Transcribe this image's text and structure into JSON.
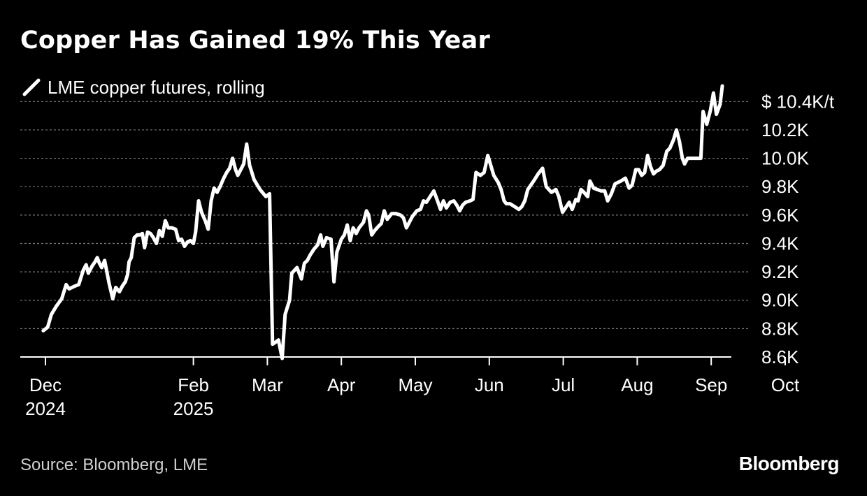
{
  "colors": {
    "background": "#000000",
    "line": "#ffffff",
    "grid": "#7a7a7a",
    "text": "#ffffff",
    "muted_text": "#cfcfcf"
  },
  "header": {
    "title": "Copper Has Gained 19% This Year"
  },
  "legend": {
    "label": "LME copper futures, rolling",
    "icon": "white-line-swatch-icon"
  },
  "footer": {
    "source": "Source: Bloomberg, LME",
    "brand": "Bloomberg"
  },
  "chart_data": {
    "type": "line",
    "title": "Copper Has Gained 19% This Year",
    "xlabel": "",
    "ylabel": "$/t",
    "ylim": [
      8600,
      10500
    ],
    "y_tick_values": [
      8600,
      8800,
      9000,
      9200,
      9400,
      9600,
      9800,
      10000,
      10200,
      10400
    ],
    "y_tick_labels": [
      "8.6K",
      "8.8K",
      "9.0K",
      "9.2K",
      "9.4K",
      "9.6K",
      "9.8K",
      "10.0K",
      "10.2K",
      "$ 10.4K/t"
    ],
    "x_ticks": [
      {
        "top": "Dec",
        "bottom": "2024",
        "t": 0
      },
      {
        "top": "Feb",
        "bottom": "2025",
        "t": 2
      },
      {
        "top": "Mar",
        "bottom": "",
        "t": 3
      },
      {
        "top": "Apr",
        "bottom": "",
        "t": 4
      },
      {
        "top": "May",
        "bottom": "",
        "t": 5
      },
      {
        "top": "Jun",
        "bottom": "",
        "t": 6
      },
      {
        "top": "Jul",
        "bottom": "",
        "t": 7
      },
      {
        "top": "Aug",
        "bottom": "",
        "t": 8
      },
      {
        "top": "Sep",
        "bottom": "",
        "t": 9
      },
      {
        "top": "Oct",
        "bottom": "",
        "t": 10
      }
    ],
    "grid": true,
    "legend_position": "top-left",
    "series": [
      {
        "name": "LME copper futures, rolling",
        "points": [
          [
            -0.03,
            8785
          ],
          [
            0.03,
            8810
          ],
          [
            0.08,
            8900
          ],
          [
            0.15,
            8960
          ],
          [
            0.22,
            9010
          ],
          [
            0.28,
            9110
          ],
          [
            0.32,
            9080
          ],
          [
            0.4,
            9100
          ],
          [
            0.45,
            9110
          ],
          [
            0.51,
            9210
          ],
          [
            0.55,
            9250
          ],
          [
            0.58,
            9190
          ],
          [
            0.63,
            9240
          ],
          [
            0.67,
            9270
          ],
          [
            0.7,
            9300
          ],
          [
            0.73,
            9260
          ],
          [
            0.76,
            9230
          ],
          [
            0.8,
            9280
          ],
          [
            0.86,
            9120
          ],
          [
            0.91,
            9010
          ],
          [
            0.95,
            9090
          ],
          [
            1.0,
            9060
          ],
          [
            1.04,
            9100
          ],
          [
            1.08,
            9130
          ],
          [
            1.11,
            9180
          ],
          [
            1.13,
            9270
          ],
          [
            1.16,
            9300
          ],
          [
            1.2,
            9440
          ],
          [
            1.24,
            9460
          ],
          [
            1.28,
            9460
          ],
          [
            1.31,
            9470
          ],
          [
            1.34,
            9370
          ],
          [
            1.38,
            9480
          ],
          [
            1.42,
            9470
          ],
          [
            1.46,
            9440
          ],
          [
            1.5,
            9400
          ],
          [
            1.54,
            9490
          ],
          [
            1.58,
            9450
          ],
          [
            1.62,
            9560
          ],
          [
            1.66,
            9510
          ],
          [
            1.71,
            9510
          ],
          [
            1.76,
            9500
          ],
          [
            1.8,
            9420
          ],
          [
            1.84,
            9430
          ],
          [
            1.88,
            9380
          ],
          [
            1.92,
            9410
          ],
          [
            1.96,
            9420
          ],
          [
            2.0,
            9400
          ],
          [
            2.03,
            9480
          ],
          [
            2.07,
            9700
          ],
          [
            2.11,
            9620
          ],
          [
            2.16,
            9560
          ],
          [
            2.2,
            9500
          ],
          [
            2.24,
            9700
          ],
          [
            2.28,
            9790
          ],
          [
            2.32,
            9760
          ],
          [
            2.36,
            9800
          ],
          [
            2.41,
            9860
          ],
          [
            2.45,
            9900
          ],
          [
            2.49,
            9930
          ],
          [
            2.53,
            10000
          ],
          [
            2.57,
            9920
          ],
          [
            2.6,
            9880
          ],
          [
            2.64,
            9920
          ],
          [
            2.68,
            9960
          ],
          [
            2.72,
            10100
          ],
          [
            2.76,
            9950
          ],
          [
            2.82,
            9850
          ],
          [
            2.9,
            9780
          ],
          [
            2.98,
            9730
          ],
          [
            3.03,
            9750
          ],
          [
            3.07,
            8690
          ],
          [
            3.1,
            8700
          ],
          [
            3.15,
            8720
          ],
          [
            3.2,
            8590
          ],
          [
            3.24,
            8900
          ],
          [
            3.3,
            9000
          ],
          [
            3.33,
            9190
          ],
          [
            3.4,
            9230
          ],
          [
            3.46,
            9150
          ],
          [
            3.5,
            9260
          ],
          [
            3.54,
            9280
          ],
          [
            3.58,
            9320
          ],
          [
            3.63,
            9360
          ],
          [
            3.68,
            9390
          ],
          [
            3.72,
            9460
          ],
          [
            3.75,
            9380
          ],
          [
            3.8,
            9440
          ],
          [
            3.86,
            9430
          ],
          [
            3.9,
            9130
          ],
          [
            3.94,
            9340
          ],
          [
            4.0,
            9430
          ],
          [
            4.04,
            9460
          ],
          [
            4.08,
            9530
          ],
          [
            4.12,
            9420
          ],
          [
            4.16,
            9510
          ],
          [
            4.2,
            9470
          ],
          [
            4.24,
            9510
          ],
          [
            4.3,
            9550
          ],
          [
            4.34,
            9630
          ],
          [
            4.37,
            9600
          ],
          [
            4.41,
            9460
          ],
          [
            4.45,
            9490
          ],
          [
            4.5,
            9520
          ],
          [
            4.54,
            9540
          ],
          [
            4.58,
            9630
          ],
          [
            4.62,
            9570
          ],
          [
            4.68,
            9610
          ],
          [
            4.74,
            9610
          ],
          [
            4.8,
            9600
          ],
          [
            4.84,
            9580
          ],
          [
            4.88,
            9510
          ],
          [
            4.92,
            9550
          ],
          [
            4.96,
            9590
          ],
          [
            5.02,
            9630
          ],
          [
            5.07,
            9640
          ],
          [
            5.11,
            9700
          ],
          [
            5.15,
            9690
          ],
          [
            5.2,
            9730
          ],
          [
            5.25,
            9770
          ],
          [
            5.3,
            9700
          ],
          [
            5.34,
            9640
          ],
          [
            5.38,
            9700
          ],
          [
            5.42,
            9650
          ],
          [
            5.47,
            9690
          ],
          [
            5.52,
            9700
          ],
          [
            5.56,
            9670
          ],
          [
            5.6,
            9630
          ],
          [
            5.64,
            9670
          ],
          [
            5.68,
            9690
          ],
          [
            5.74,
            9700
          ],
          [
            5.78,
            9710
          ],
          [
            5.82,
            9900
          ],
          [
            5.88,
            9880
          ],
          [
            5.93,
            9900
          ],
          [
            5.98,
            10020
          ],
          [
            6.02,
            9950
          ],
          [
            6.06,
            9880
          ],
          [
            6.12,
            9830
          ],
          [
            6.16,
            9780
          ],
          [
            6.2,
            9700
          ],
          [
            6.23,
            9680
          ],
          [
            6.28,
            9680
          ],
          [
            6.34,
            9660
          ],
          [
            6.4,
            9640
          ],
          [
            6.44,
            9660
          ],
          [
            6.48,
            9700
          ],
          [
            6.52,
            9780
          ],
          [
            6.6,
            9840
          ],
          [
            6.66,
            9890
          ],
          [
            6.72,
            9930
          ],
          [
            6.77,
            9800
          ],
          [
            6.84,
            9760
          ],
          [
            6.9,
            9780
          ],
          [
            6.94,
            9730
          ],
          [
            6.99,
            9620
          ],
          [
            7.03,
            9650
          ],
          [
            7.08,
            9690
          ],
          [
            7.12,
            9640
          ],
          [
            7.17,
            9710
          ],
          [
            7.2,
            9700
          ],
          [
            7.24,
            9780
          ],
          [
            7.28,
            9760
          ],
          [
            7.33,
            9730
          ],
          [
            7.36,
            9840
          ],
          [
            7.41,
            9790
          ],
          [
            7.46,
            9780
          ],
          [
            7.51,
            9770
          ],
          [
            7.56,
            9770
          ],
          [
            7.6,
            9700
          ],
          [
            7.65,
            9750
          ],
          [
            7.7,
            9820
          ],
          [
            7.78,
            9840
          ],
          [
            7.84,
            9860
          ],
          [
            7.89,
            9790
          ],
          [
            7.93,
            9810
          ],
          [
            7.98,
            9920
          ],
          [
            8.02,
            9920
          ],
          [
            8.06,
            9880
          ],
          [
            8.1,
            9900
          ],
          [
            8.14,
            10020
          ],
          [
            8.18,
            9940
          ],
          [
            8.22,
            9890
          ],
          [
            8.26,
            9910
          ],
          [
            8.3,
            9920
          ],
          [
            8.35,
            9950
          ],
          [
            8.4,
            10050
          ],
          [
            8.44,
            10070
          ],
          [
            8.49,
            10130
          ],
          [
            8.53,
            10200
          ],
          [
            8.57,
            10120
          ],
          [
            8.61,
            10000
          ],
          [
            8.64,
            9960
          ],
          [
            8.68,
            10000
          ],
          [
            8.73,
            10000
          ],
          [
            8.78,
            10000
          ],
          [
            8.82,
            10000
          ],
          [
            8.86,
            10000
          ],
          [
            8.89,
            10330
          ],
          [
            8.94,
            10240
          ],
          [
            8.99,
            10340
          ],
          [
            9.03,
            10460
          ],
          [
            9.07,
            10310
          ],
          [
            9.12,
            10380
          ],
          [
            9.15,
            10510
          ]
        ]
      }
    ]
  }
}
